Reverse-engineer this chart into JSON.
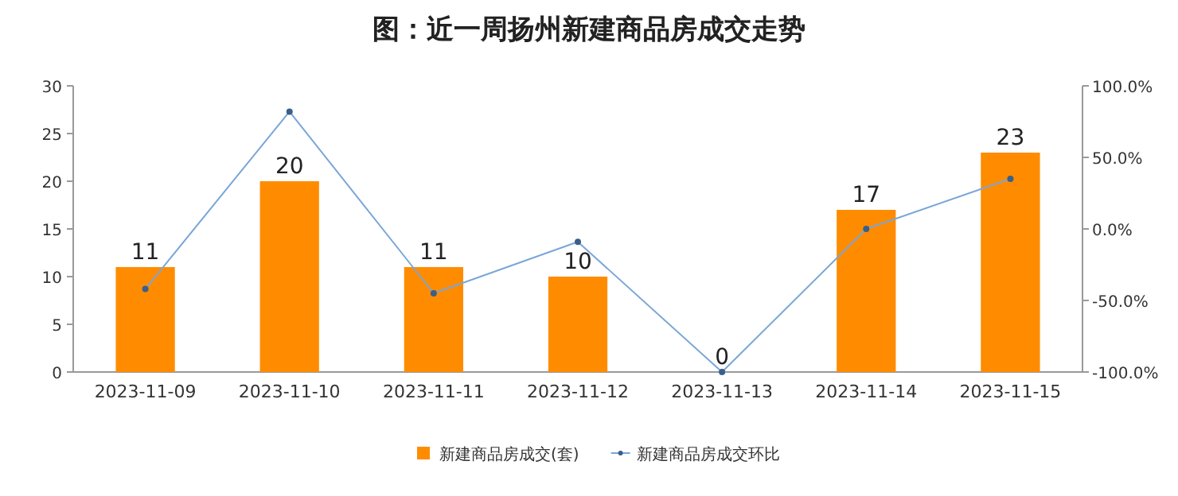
{
  "chart_data": {
    "type": "bar",
    "title": "图：近一周扬州新建商品房成交走势",
    "categories": [
      "2023-11-09",
      "2023-11-10",
      "2023-11-11",
      "2023-11-12",
      "2023-11-13",
      "2023-11-14",
      "2023-11-15"
    ],
    "series": [
      {
        "name": "新建商品房成交(套)",
        "color": "#ff8c00",
        "values": [
          11,
          20,
          11,
          10,
          0,
          17,
          23
        ],
        "value_labels": [
          "11",
          "20",
          "11",
          "10",
          "0",
          "17",
          "23"
        ]
      },
      {
        "name": "新建商品房成交环比",
        "type": "line",
        "axis": "y2",
        "color": "#7aa6d8",
        "values": [
          -42,
          82,
          -45,
          -9,
          -100,
          0,
          35
        ]
      }
    ],
    "ylim": [
      0,
      30
    ],
    "yticks": [
      0,
      5,
      10,
      15,
      20,
      25,
      30
    ],
    "y2lim": [
      -100,
      100
    ],
    "y2ticks": [
      {
        "value": -100,
        "label": "-100.0%"
      },
      {
        "value": -50,
        "label": "-50.0%"
      },
      {
        "value": 0,
        "label": "0.0%"
      },
      {
        "value": 50,
        "label": "50.0%"
      },
      {
        "value": 100,
        "label": "100.0%"
      }
    ],
    "marker": "circle",
    "legend": "bottom",
    "grid": false
  }
}
